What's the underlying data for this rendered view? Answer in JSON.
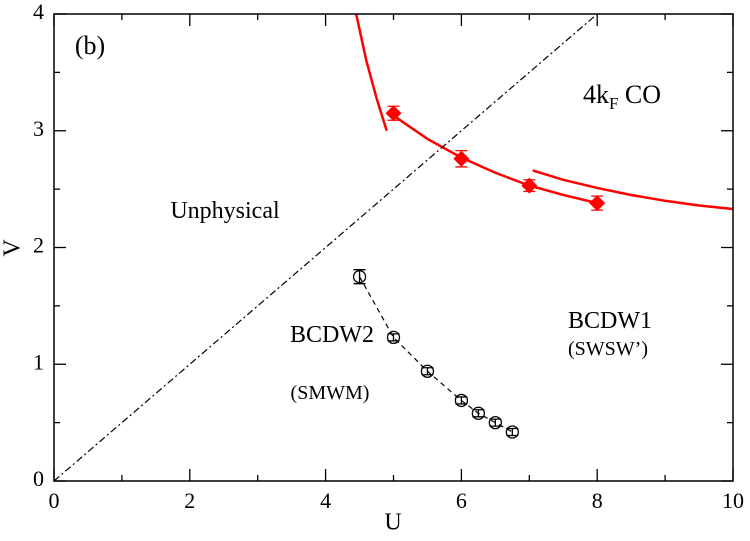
{
  "chart_data": {
    "type": "scatter",
    "x_label": "U",
    "y_label": "V",
    "xlim": [
      0,
      10
    ],
    "ylim": [
      0,
      4
    ],
    "xticks": [
      0,
      2,
      4,
      6,
      8,
      10
    ],
    "yticks": [
      0,
      1,
      2,
      3,
      4
    ],
    "x_minor_ticks": [
      1,
      3,
      5,
      7,
      9
    ],
    "y_minor_ticks": [
      0.5,
      1.5,
      2.5,
      3.5
    ],
    "series": [
      {
        "x": [
          5,
          6,
          7,
          8
        ],
        "values": [
          3.15,
          2.76,
          2.53,
          2.38
        ],
        "errors": [
          0.06,
          0.07,
          0.05,
          0.06
        ],
        "color": "#ff0000",
        "marker": "diamond"
      },
      {
        "x": [
          4.5,
          5,
          5.5,
          6,
          6.25,
          6.5,
          6.75
        ],
        "values": [
          1.75,
          1.23,
          0.94,
          0.69,
          0.58,
          0.5,
          0.42
        ],
        "errors": [
          0.06,
          0.03,
          0.03,
          0.03,
          0.03,
          0.03,
          0.03
        ],
        "color": "#000000",
        "marker": "circle",
        "line": "dashed"
      },
      {
        "x": [
          4.45,
          4.6,
          4.75,
          4.9
        ],
        "values": [
          4.0,
          3.6,
          3.28,
          3.0
        ],
        "color": "#ff0000",
        "line": "solid"
      },
      {
        "x": [
          5,
          5.5,
          6,
          6.5,
          7,
          7.5,
          8
        ],
        "values": [
          3.13,
          2.93,
          2.77,
          2.64,
          2.53,
          2.45,
          2.38
        ],
        "color": "#ff0000",
        "line": "solid"
      },
      {
        "x": [
          7.05,
          7.5,
          8,
          8.5,
          9,
          9.5,
          10
        ],
        "values": [
          2.66,
          2.58,
          2.51,
          2.45,
          2.4,
          2.36,
          2.33
        ],
        "color": "#ff0000",
        "line": "solid"
      },
      {
        "x": [
          0,
          8
        ],
        "values": [
          0,
          4
        ],
        "color": "#000000",
        "line": "dashdot"
      }
    ],
    "annotations": [
      {
        "text": "(b)"
      },
      {
        "text": "4k",
        "sub": "F",
        "after": " CO"
      },
      {
        "text": "Unphysical"
      },
      {
        "text": "BCDW2"
      },
      {
        "text": "(SMWM)"
      },
      {
        "text": "BCDW1"
      },
      {
        "text": "(SWSW’)"
      }
    ]
  }
}
